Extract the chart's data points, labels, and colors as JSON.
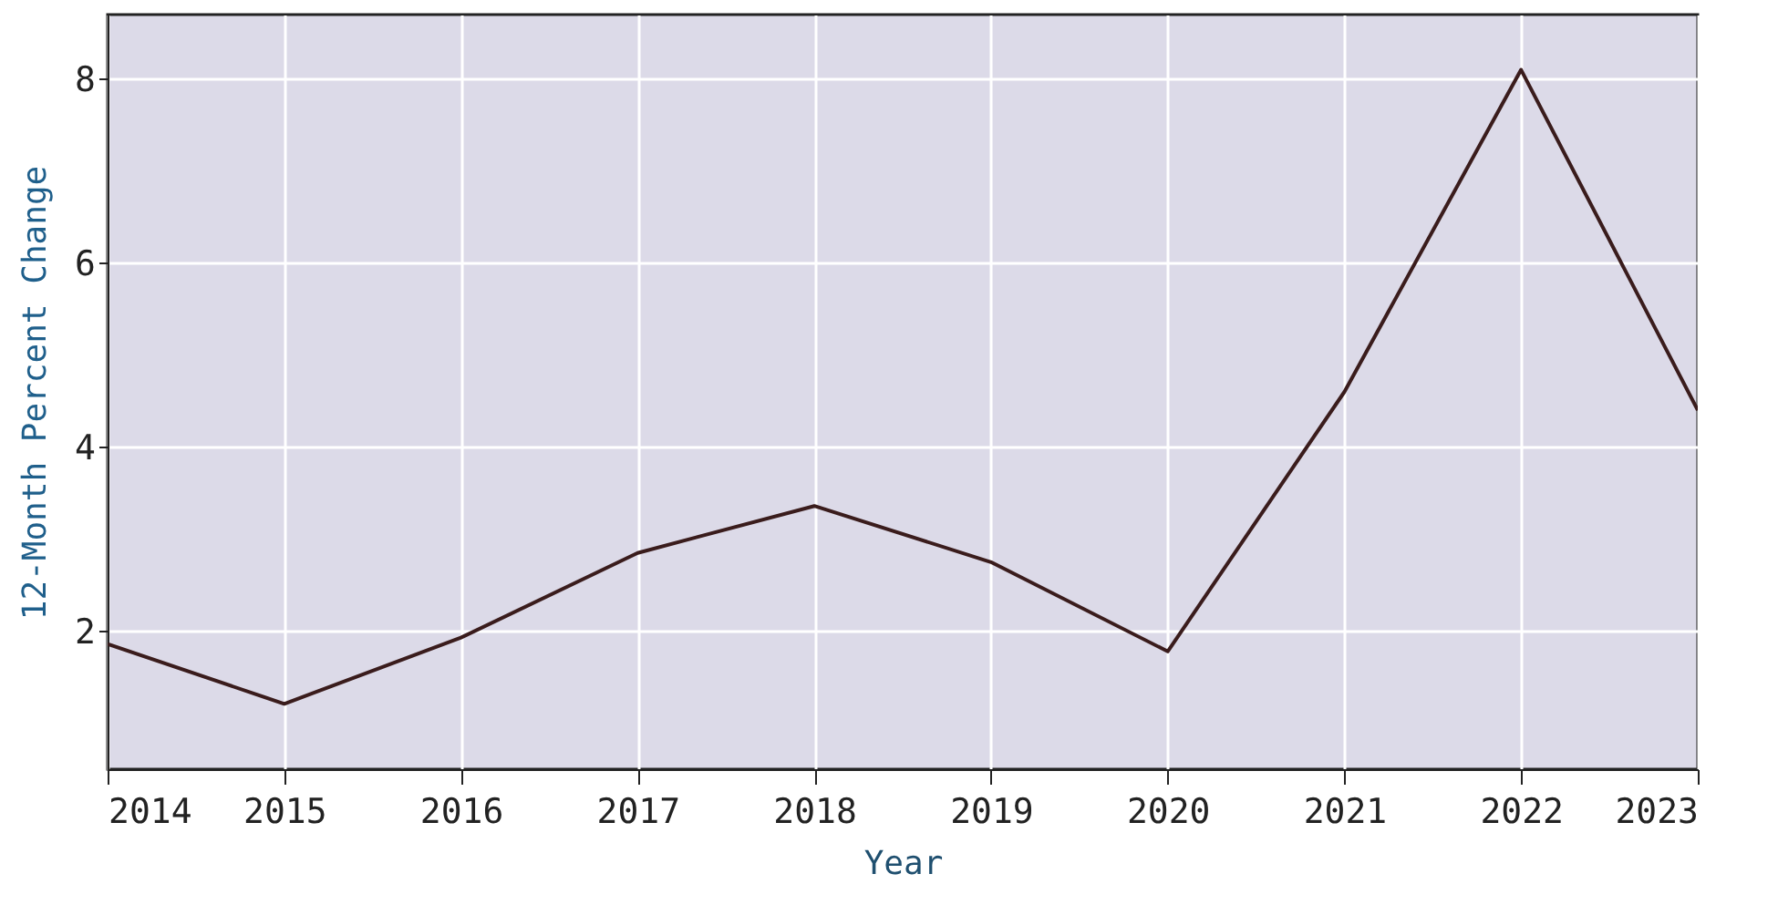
{
  "chart_data": {
    "type": "line",
    "xlabel": "Year",
    "ylabel": "12-Month Percent Change",
    "x": [
      2014,
      2015,
      2016,
      2017,
      2018,
      2019,
      2020,
      2021,
      2022,
      2023
    ],
    "series": [
      {
        "color": "#3a1c1c",
        "values": [
          1.86,
          1.21,
          1.93,
          2.85,
          3.36,
          2.75,
          1.78,
          4.6,
          8.1,
          4.4
        ]
      }
    ],
    "xlim": [
      2014,
      2023
    ],
    "xticks": [
      2014,
      2015,
      2016,
      2017,
      2018,
      2019,
      2020,
      2021,
      2022,
      2023
    ],
    "ylim": [
      0.5,
      8.7
    ],
    "yticks": [
      2,
      4,
      6,
      8
    ],
    "grid": true,
    "marker": "none",
    "line_style": "solid"
  }
}
